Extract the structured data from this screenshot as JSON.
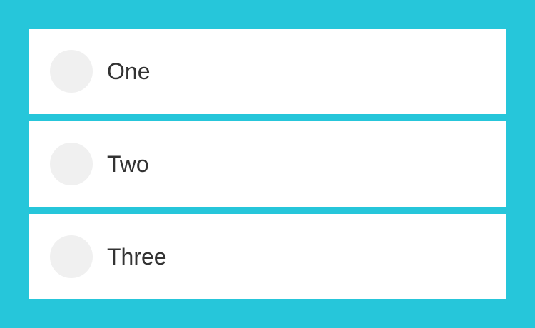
{
  "theme": {
    "background": "#26c6da",
    "card": "#ffffff",
    "avatar": "#f0f0f0",
    "text": "#333333"
  },
  "list": {
    "items": [
      {
        "label": "One"
      },
      {
        "label": "Two"
      },
      {
        "label": "Three"
      }
    ]
  }
}
